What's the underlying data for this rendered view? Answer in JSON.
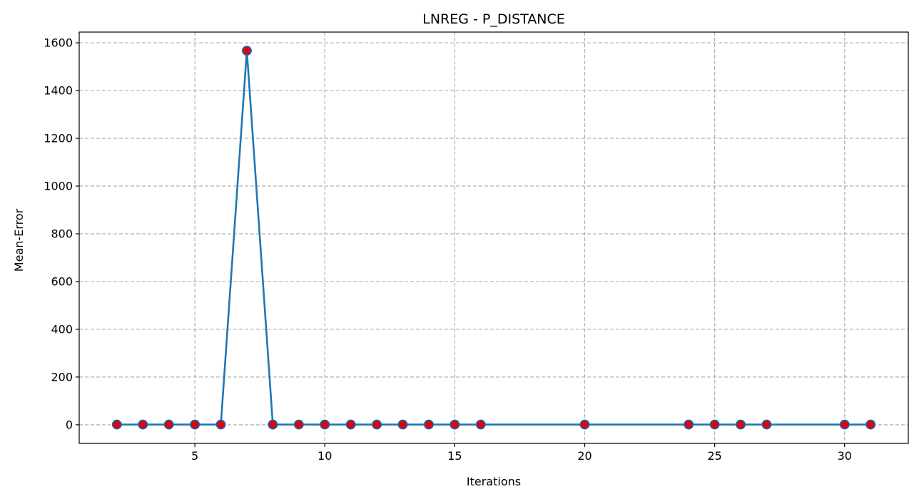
{
  "chart_data": {
    "type": "line",
    "title": "LNREG - P_DISTANCE",
    "xlabel": "Iterations",
    "ylabel": "Mean-Error",
    "x": [
      2,
      3,
      4,
      5,
      6,
      7,
      8,
      9,
      10,
      11,
      12,
      13,
      14,
      15,
      16,
      20,
      24,
      25,
      26,
      27,
      30,
      31
    ],
    "series": [
      {
        "values": [
          1,
          1,
          1,
          1,
          1,
          1567,
          1,
          1,
          1,
          1,
          1,
          1,
          1,
          1,
          1,
          1,
          1,
          1,
          1,
          1,
          1,
          1
        ]
      }
    ],
    "xticks": [
      5,
      10,
      15,
      20,
      25,
      30
    ],
    "yticks": [
      0,
      200,
      400,
      600,
      800,
      1000,
      1200,
      1400,
      1600
    ],
    "xlim": [
      0.55,
      32.45
    ],
    "ylim": [
      -78,
      1645
    ],
    "grid": true,
    "colors": {
      "line": "#1f77b4",
      "marker_face": "#e00010",
      "marker_edge": "#1f5f9f"
    }
  }
}
